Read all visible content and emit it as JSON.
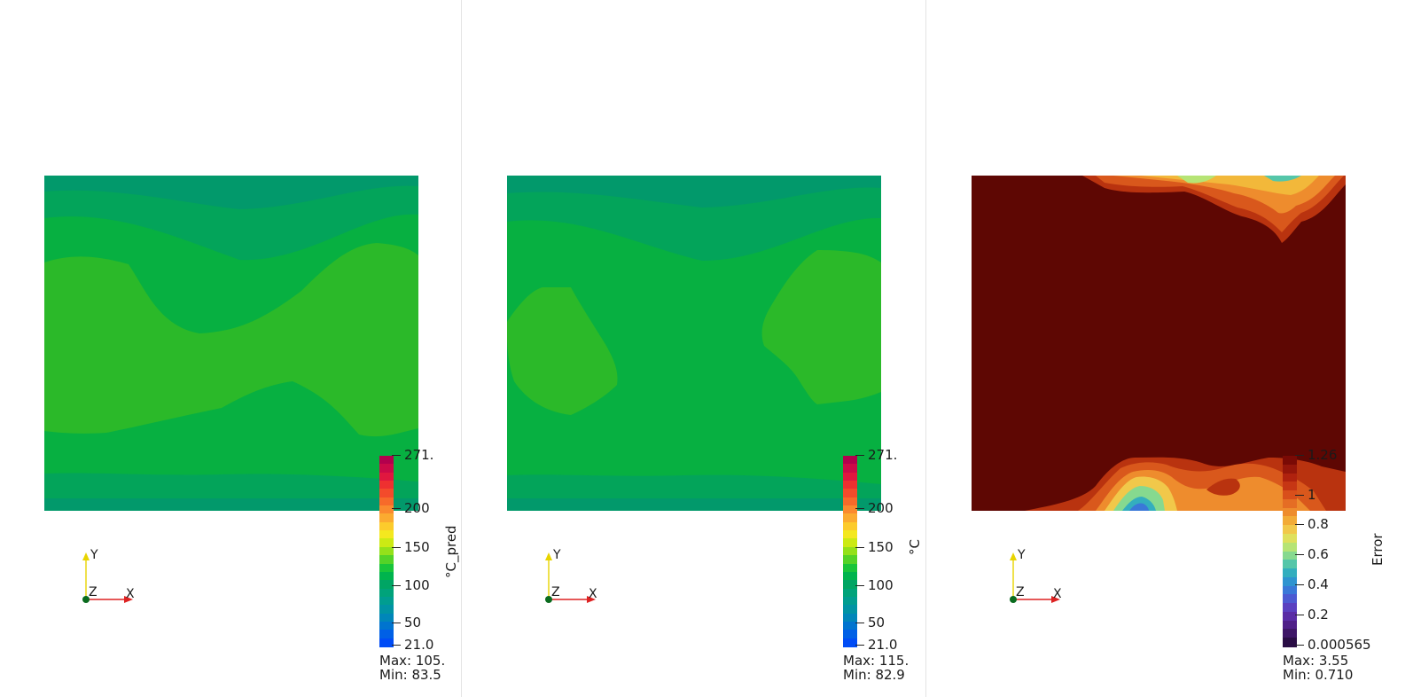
{
  "panels": [
    {
      "id": "pred",
      "colorbar_title": "°C_pred",
      "colorbar_ticks": [
        "271.",
        "200",
        "150",
        "100",
        "50",
        "21.0"
      ],
      "max_label": "Max: 105.",
      "min_label": "Min: 83.5",
      "colorbar_colors": [
        "#b3004d",
        "#cc0a48",
        "#e0173f",
        "#ee3030",
        "#f34b2b",
        "#f76a2a",
        "#fa8a2e",
        "#fbab30",
        "#fccb2c",
        "#f4e81f",
        "#ccea14",
        "#94e11a",
        "#54d328",
        "#19c53a",
        "#00b44d",
        "#00a564",
        "#00a37a",
        "#009d90",
        "#0093a4",
        "#0086b9",
        "#0074cf",
        "#0060e6",
        "#004cf6"
      ]
    },
    {
      "id": "true",
      "colorbar_title": "°C",
      "colorbar_ticks": [
        "271.",
        "200",
        "150",
        "100",
        "50",
        "21.0"
      ],
      "max_label": "Max: 115.",
      "min_label": "Min: 82.9",
      "colorbar_colors": [
        "#b3004d",
        "#cc0a48",
        "#e0173f",
        "#ee3030",
        "#f34b2b",
        "#f76a2a",
        "#fa8a2e",
        "#fbab30",
        "#fccb2c",
        "#f4e81f",
        "#ccea14",
        "#94e11a",
        "#54d328",
        "#19c53a",
        "#00b44d",
        "#00a564",
        "#00a37a",
        "#009d90",
        "#0093a4",
        "#0086b9",
        "#0074cf",
        "#0060e6",
        "#004cf6"
      ]
    },
    {
      "id": "error",
      "colorbar_title": "Error",
      "colorbar_ticks": [
        "1.26",
        "1",
        "0.8",
        "0.6",
        "0.4",
        "0.2",
        "0.000565"
      ],
      "max_label": "Max: 3.55",
      "min_label": "Min: 0.710",
      "colorbar_colors": [
        "#7a0a05",
        "#96160a",
        "#b0220e",
        "#c63614",
        "#d94f1b",
        "#e56d24",
        "#ee8c2d",
        "#f2ab37",
        "#f1c84a",
        "#dfe05c",
        "#b6e475",
        "#86d98f",
        "#55c6a9",
        "#33aebe",
        "#2f94d0",
        "#3a78d8",
        "#4c5ad2",
        "#5a40c0",
        "#5a2ca6",
        "#4f1f88",
        "#3e1667",
        "#2a0d45"
      ]
    }
  ],
  "axes_labels": {
    "x": "X",
    "y": "Y",
    "z": "Z"
  },
  "field_colors": {
    "band_1": "#02996b",
    "band_2": "#03a45a",
    "band_3": "#07b041",
    "band_4": "#2bb929",
    "error_bg": "#5e0703"
  }
}
